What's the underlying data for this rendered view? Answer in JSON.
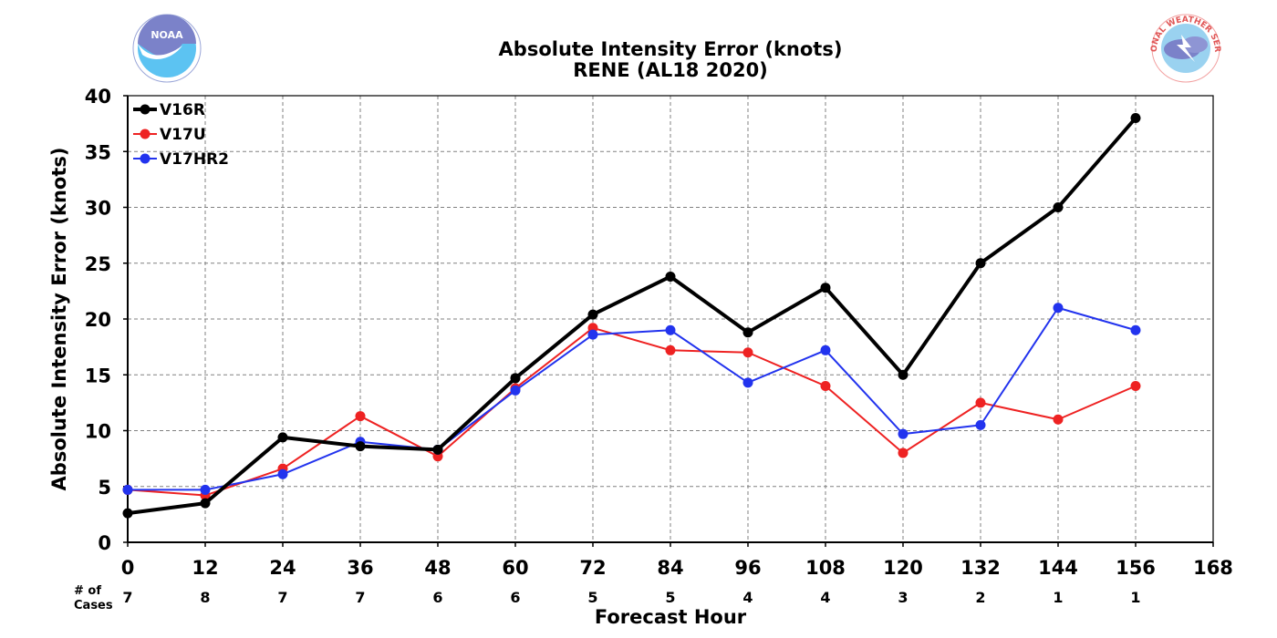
{
  "chart_data": {
    "type": "line",
    "title": "Absolute Intensity Error (knots)",
    "subtitle": "RENE (AL18 2020)",
    "xlabel": "Forecast Hour",
    "ylabel": "Absolute Intensity Error (knots)",
    "xlim": [
      0,
      168
    ],
    "ylim": [
      0,
      40
    ],
    "x_ticks": [
      0,
      12,
      24,
      36,
      48,
      60,
      72,
      84,
      96,
      108,
      120,
      132,
      144,
      156,
      168
    ],
    "y_ticks": [
      0,
      5,
      10,
      15,
      20,
      25,
      30,
      35,
      40
    ],
    "grid": true,
    "legend_position": "top-left",
    "x": [
      0,
      12,
      24,
      36,
      48,
      60,
      72,
      84,
      96,
      108,
      120,
      132,
      144,
      156
    ],
    "series": [
      {
        "name": "V16R",
        "color": "#000000",
        "width": 4,
        "values": [
          2.6,
          3.5,
          9.4,
          8.6,
          8.3,
          14.7,
          20.4,
          23.8,
          18.8,
          22.8,
          15.0,
          25.0,
          30.0,
          38.0
        ]
      },
      {
        "name": "V17U",
        "color": "#ee2222",
        "width": 2,
        "values": [
          4.7,
          4.2,
          6.6,
          11.3,
          7.7,
          13.8,
          19.2,
          17.2,
          17.0,
          14.0,
          8.0,
          12.5,
          11.0,
          14.0
        ]
      },
      {
        "name": "V17HR2",
        "color": "#2233ee",
        "width": 2,
        "values": [
          4.7,
          4.7,
          6.1,
          9.0,
          8.3,
          13.6,
          18.6,
          19.0,
          14.3,
          17.2,
          9.7,
          10.5,
          21.0,
          19.0
        ]
      }
    ],
    "cases_label": [
      "# of",
      "Cases"
    ],
    "cases": [
      "7",
      "8",
      "7",
      "7",
      "6",
      "6",
      "5",
      "5",
      "4",
      "4",
      "3",
      "2",
      "1",
      "1"
    ]
  },
  "logos": {
    "left": {
      "icon": "noaa-logo",
      "text": "NOAA"
    },
    "right": {
      "icon": "nws-logo",
      "text": "NATIONAL WEATHER SERVICE"
    }
  }
}
